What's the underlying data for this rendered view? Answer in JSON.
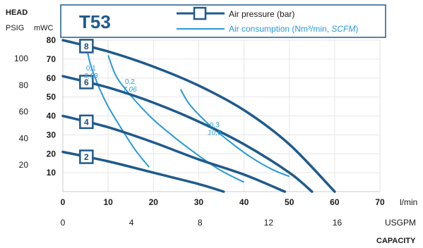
{
  "header": {
    "head_label": "HEAD",
    "psig_label": "PSIG",
    "mwc_label": "mWC",
    "model": "T53"
  },
  "legend": {
    "pressure_label": "Air pressure (bar)",
    "air_label_prefix": "Air consumption (Nm³/min, ",
    "air_label_italic": "SCFM",
    "air_label_suffix": ")"
  },
  "axes": {
    "lpm_unit": "l/min",
    "usgpm_unit": "USGPM",
    "capacity_label": "CAPACITY"
  },
  "colors": {
    "pressure_curve": "#1f5a8c",
    "air_curve": "#2a9ad8",
    "frame": "#1f5a8c"
  },
  "chart_data": {
    "type": "line",
    "title": "T53",
    "xlabel": "CAPACITY",
    "ylabel": "HEAD",
    "xlim": [
      0,
      70
    ],
    "ylim": [
      0,
      80
    ],
    "x_ticks_lpm": [
      0,
      10,
      20,
      30,
      40,
      50,
      60,
      70
    ],
    "x_ticks_usgpm": [
      "0",
      "4",
      "8",
      "12",
      "16"
    ],
    "x_ticks_usgpm_lpm": [
      0,
      15.14,
      30.28,
      45.42,
      60.57
    ],
    "y_ticks_mwc": [
      10,
      20,
      30,
      40,
      50,
      60,
      70,
      80
    ],
    "y_ticks_psig": [
      "20",
      "40",
      "60",
      "80",
      "100"
    ],
    "y_ticks_psig_mwc": [
      14.06,
      28.12,
      42.18,
      56.24,
      70.3
    ],
    "grid": true,
    "series": [
      {
        "name": "8",
        "kind": "pressure",
        "x": [
          0,
          10,
          20,
          30,
          40,
          50,
          60
        ],
        "y": [
          80,
          74,
          66,
          56,
          43,
          25,
          0
        ]
      },
      {
        "name": "6",
        "kind": "pressure",
        "x": [
          0,
          10,
          20,
          30,
          40,
          50,
          55
        ],
        "y": [
          61,
          55,
          47,
          37,
          25,
          10,
          0
        ]
      },
      {
        "name": "4",
        "kind": "pressure",
        "x": [
          0,
          10,
          20,
          30,
          40,
          49
        ],
        "y": [
          40,
          34,
          26,
          17,
          9,
          0
        ]
      },
      {
        "name": "2",
        "kind": "pressure",
        "x": [
          0,
          10,
          20,
          30,
          35.5
        ],
        "y": [
          21,
          16,
          10,
          4,
          0
        ]
      },
      {
        "name": "0,1",
        "label_si": "0,1",
        "label_scfm": "3,53",
        "kind": "air",
        "x": [
          5,
          6,
          8,
          10,
          13,
          16,
          19
        ],
        "y": [
          80,
          68,
          55,
          45,
          33,
          22,
          13
        ]
      },
      {
        "name": "0,2",
        "label_si": "0,2",
        "label_scfm": "7,06",
        "kind": "air",
        "x": [
          10,
          12,
          16,
          20,
          25,
          30,
          35,
          40
        ],
        "y": [
          72,
          60,
          48,
          38,
          28,
          19,
          11,
          5
        ]
      },
      {
        "name": "0,3",
        "label_si": "0,3",
        "label_scfm": "10,6",
        "kind": "air",
        "x": [
          26,
          28,
          32,
          36,
          41,
          46,
          50
        ],
        "y": [
          54,
          46,
          36,
          28,
          19,
          12,
          8
        ]
      }
    ]
  }
}
